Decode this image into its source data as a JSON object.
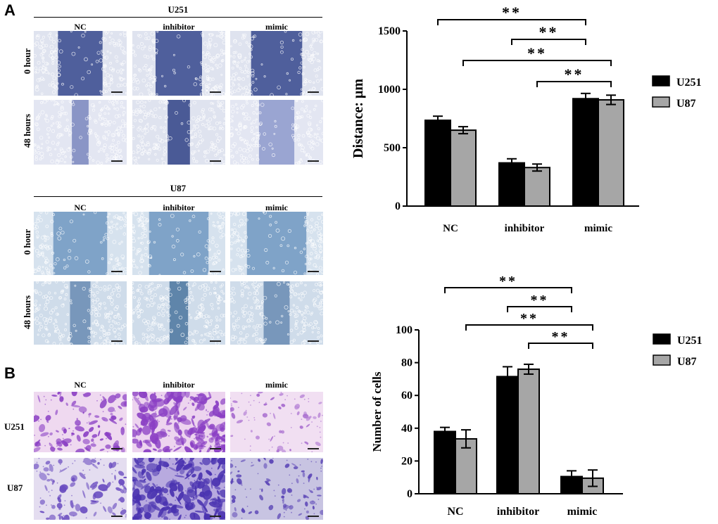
{
  "panels": {
    "a": "A",
    "b": "B"
  },
  "wound_healing": {
    "columns": [
      "NC",
      "inhibitor",
      "mimic"
    ],
    "time_points": [
      "0 hour",
      "48 hours"
    ],
    "u251": {
      "title": "U251",
      "color_0h": "#4f5f9c",
      "color_48h": "#8a95c6"
    },
    "u87": {
      "title": "U87",
      "color_0h": "#7fa3c8",
      "color_48h": "#7897bb"
    }
  },
  "transwell": {
    "columns": [
      "NC",
      "inhibitor",
      "mimic"
    ],
    "rows": [
      "U251",
      "U87"
    ],
    "stain_color": "#8a3fc4"
  },
  "significance_marker": "**",
  "chart_data": [
    {
      "type": "bar",
      "title": "",
      "xlabel": "",
      "ylabel": "Distance: μm",
      "categories": [
        "NC",
        "inhibitor",
        "mimic"
      ],
      "series": [
        {
          "name": "U251",
          "color": "#000000",
          "values": [
            735,
            370,
            920
          ],
          "errors": [
            35,
            35,
            45
          ]
        },
        {
          "name": "U87",
          "color": "#a6a6a6",
          "values": [
            650,
            330,
            910
          ],
          "errors": [
            30,
            30,
            40
          ]
        }
      ],
      "ylim": [
        0,
        1500
      ],
      "yticks": [
        0,
        500,
        1000,
        1500
      ],
      "legend": "right",
      "significance": [
        {
          "from": "NC-U251",
          "to": "mimic-U251",
          "label": "**"
        },
        {
          "from": "inhibitor-U251",
          "to": "mimic-U251",
          "label": "**"
        },
        {
          "from": "NC-U87",
          "to": "mimic-U87",
          "label": "**"
        },
        {
          "from": "inhibitor-U87",
          "to": "mimic-U87",
          "label": "**"
        }
      ]
    },
    {
      "type": "bar",
      "title": "",
      "xlabel": "",
      "ylabel": "Number of cells",
      "categories": [
        "NC",
        "inhibitor",
        "mimic"
      ],
      "series": [
        {
          "name": "U251",
          "color": "#000000",
          "values": [
            38,
            71.5,
            10.5
          ],
          "errors": [
            2.5,
            6,
            3.5
          ]
        },
        {
          "name": "U87",
          "color": "#a6a6a6",
          "values": [
            33.5,
            76,
            9.5
          ],
          "errors": [
            5.5,
            3,
            5
          ]
        }
      ],
      "ylim": [
        0,
        100
      ],
      "yticks": [
        0,
        20,
        40,
        60,
        80,
        100
      ],
      "legend": "right",
      "significance": [
        {
          "from": "NC-U251",
          "to": "mimic-U251",
          "label": "**"
        },
        {
          "from": "inhibitor-U251",
          "to": "mimic-U251",
          "label": "**"
        },
        {
          "from": "NC-U87",
          "to": "mimic-U87",
          "label": "**"
        },
        {
          "from": "inhibitor-U87",
          "to": "mimic-U87",
          "label": "**"
        }
      ]
    }
  ]
}
